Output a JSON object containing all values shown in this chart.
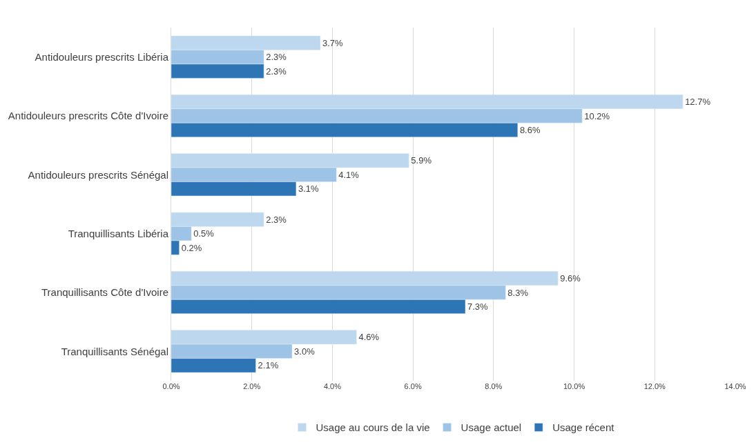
{
  "chart_data": {
    "type": "bar",
    "orientation": "horizontal",
    "categories": [
      "Antidouleurs prescrits Libéria",
      "Antidouleurs prescrits Côte d'Ivoire",
      "Antidouleurs prescrits Sénégal",
      "Tranquillisants Libéria",
      "Tranquillisants Côte d'Ivoire",
      "Tranquillisants Sénégal"
    ],
    "series": [
      {
        "name": "Usage au cours de la vie",
        "color": "#bdd7ee",
        "values": [
          3.7,
          12.7,
          5.9,
          2.3,
          9.6,
          4.6
        ],
        "value_labels": [
          "3.7%",
          "12.7%",
          "5.9%",
          "2.3%",
          "9.6%",
          "4.6%"
        ]
      },
      {
        "name": "Usage actuel",
        "color": "#9dc3e6",
        "values": [
          2.3,
          10.2,
          4.1,
          0.5,
          8.3,
          3.0
        ],
        "value_labels": [
          "2.3%",
          "10.2%",
          "4.1%",
          "0.5%",
          "8.3%",
          "3.0%"
        ]
      },
      {
        "name": "Usage récent",
        "color": "#2e75b6",
        "values": [
          2.3,
          8.6,
          3.1,
          0.2,
          7.3,
          2.1
        ],
        "value_labels": [
          "2.3%",
          "8.6%",
          "3.1%",
          "0.2%",
          "7.3%",
          "2.1%"
        ]
      }
    ],
    "xlim": [
      0,
      14
    ],
    "xticks": [
      {
        "value": 0,
        "label": "0.0%"
      },
      {
        "value": 2,
        "label": "2.0%"
      },
      {
        "value": 4,
        "label": "4.0%"
      },
      {
        "value": 6,
        "label": "6.0%"
      },
      {
        "value": 8,
        "label": "8.0%"
      },
      {
        "value": 10,
        "label": "10.0%"
      },
      {
        "value": 12,
        "label": "12.0%"
      },
      {
        "value": 14,
        "label": "14.0%"
      }
    ],
    "grid": "x",
    "legend": "bottom"
  }
}
